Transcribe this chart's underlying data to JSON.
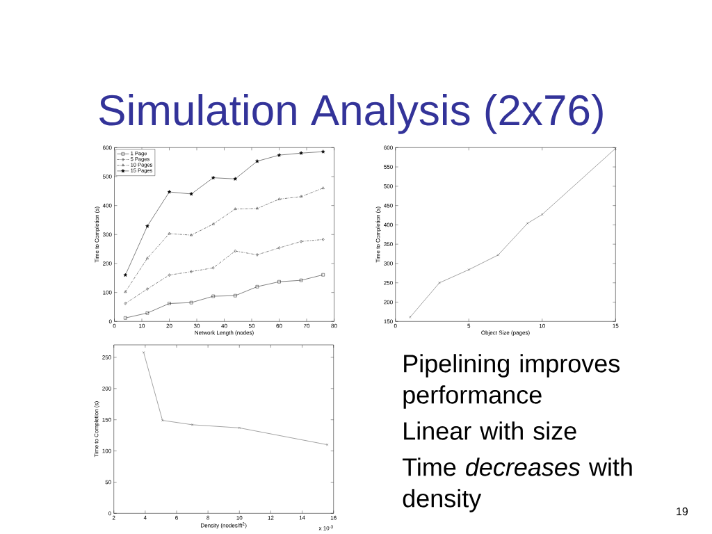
{
  "chart_data": [
    {
      "type": "line",
      "xlabel": "Network Length (nodes)",
      "ylabel": "Time to Completion (s)",
      "x": [
        4,
        12,
        20,
        28,
        36,
        44,
        52,
        60,
        68,
        76
      ],
      "series": [
        {
          "name": "1 Page",
          "color": "#000000",
          "marker": "square",
          "line_style": "solid",
          "values": [
            12,
            29,
            62,
            65,
            87,
            89,
            120,
            137,
            142,
            161
          ]
        },
        {
          "name": "5 Pages",
          "color": "#000000",
          "marker": "diamond",
          "line_style": "dashed",
          "values": [
            62,
            112,
            160,
            172,
            185,
            243,
            230,
            254,
            276,
            283
          ]
        },
        {
          "name": "10 Pages",
          "color": "#000000",
          "marker": "triangle",
          "line_style": "dashed",
          "values": [
            102,
            218,
            303,
            298,
            336,
            388,
            390,
            422,
            431,
            460
          ]
        },
        {
          "name": "15 Pages",
          "color": "#000000",
          "marker": "star",
          "line_style": "solid",
          "values": [
            160,
            329,
            447,
            440,
            496,
            492,
            553,
            574,
            581,
            586
          ]
        }
      ],
      "xlim": [
        0,
        80
      ],
      "xticks": [
        0,
        10,
        20,
        30,
        40,
        50,
        60,
        70,
        80
      ],
      "ylim": [
        0,
        600
      ],
      "yticks": [
        0,
        100,
        200,
        300,
        400,
        500,
        600
      ],
      "legend": "top left"
    },
    {
      "type": "line",
      "xlabel": "Object Size (pages)",
      "ylabel": "Time to Completion (s)",
      "x": [
        1,
        3,
        5,
        7,
        9,
        10,
        15
      ],
      "values": [
        161,
        250,
        284,
        322,
        404,
        427,
        598
      ],
      "color": "#444444",
      "marker": "cross",
      "xlim": [
        0,
        15
      ],
      "xticks": [
        0,
        5,
        10,
        15
      ],
      "ylim": [
        150,
        600
      ],
      "yticks": [
        150,
        200,
        250,
        300,
        350,
        400,
        450,
        500,
        550,
        600
      ]
    },
    {
      "type": "line",
      "xlabel": "Density (nodes/ft$^{2}$)",
      "ylabel": "Time to Completion (s)",
      "x": [
        3.9,
        5.1,
        7.0,
        10.0,
        15.6
      ],
      "values": [
        258,
        149,
        142,
        137,
        110
      ],
      "color": "#444444",
      "marker": "cross",
      "xlim": [
        2,
        16
      ],
      "xticks": [
        2,
        4,
        6,
        8,
        10,
        12,
        14,
        16
      ],
      "ylim": [
        0,
        270
      ],
      "yticks": [
        0,
        50,
        100,
        150,
        200,
        250
      ],
      "annotations": [
        "x 10$^{-3}$"
      ]
    },
    {
      "type": "other",
      "title": "Simulation Analysis (2x76)",
      "annotations": [
        "Pipelining improves performance",
        "Linear with size",
        "Time *decreases* with density",
        "19"
      ]
    }
  ]
}
